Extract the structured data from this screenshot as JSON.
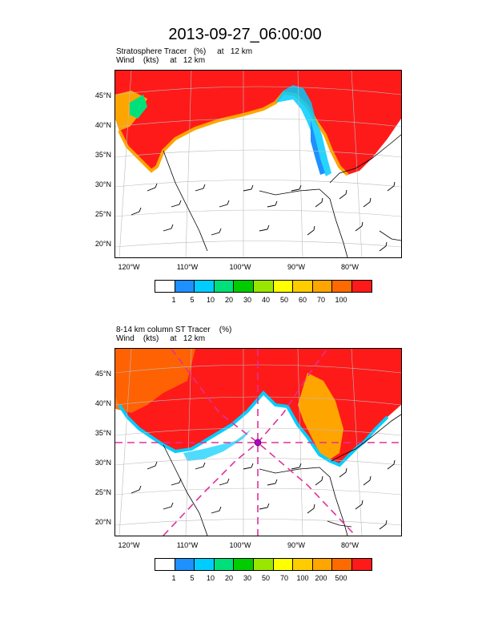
{
  "title": "2013-09-27_06:00:00",
  "panels": [
    {
      "line1": "Stratosphere Tracer   (%)     at   12 km",
      "line2": "Wind    (kts)     at   12 km",
      "lat_labels": [
        "45°N",
        "40°N",
        "35°N",
        "30°N",
        "25°N",
        "20°N"
      ],
      "lon_labels": [
        "120°W",
        "110°W",
        "100°W",
        "90°W",
        "80°W"
      ],
      "colorbar_labels": [
        "1",
        "5",
        "10",
        "20",
        "30",
        "40",
        "50",
        "60",
        "70",
        "100"
      ]
    },
    {
      "line1": "8-14 km column ST Tracer    (%)",
      "line2": "Wind    (kts)     at   12 km",
      "lat_labels": [
        "45°N",
        "40°N",
        "35°N",
        "30°N",
        "25°N",
        "20°N"
      ],
      "lon_labels": [
        "120°W",
        "110°W",
        "100°W",
        "90°W",
        "80°W"
      ],
      "colorbar_labels": [
        "1",
        "5",
        "10",
        "20",
        "30",
        "50",
        "70",
        "100",
        "200",
        "500"
      ]
    }
  ],
  "colors": {
    "scale": [
      "#ffffff",
      "#1e90ff",
      "#00cdff",
      "#00e07a",
      "#00cc00",
      "#99e600",
      "#ffff00",
      "#ffcc00",
      "#ffa500",
      "#ff6a00",
      "#ff1a1a"
    ],
    "trajectory": "#e0309a"
  }
}
